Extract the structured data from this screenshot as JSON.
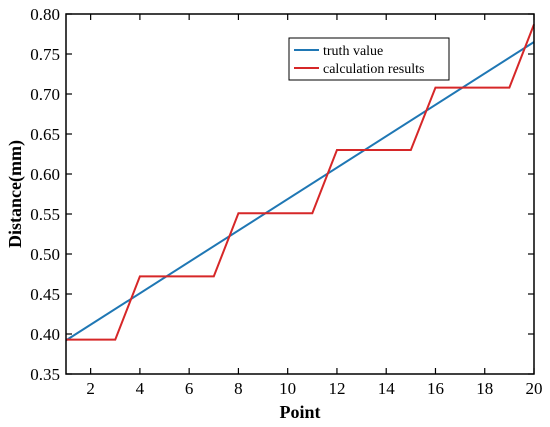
{
  "chart_data": {
    "type": "line",
    "title": "",
    "xlabel": "Point",
    "ylabel": "Distance(mm)",
    "xlim": [
      1,
      20
    ],
    "ylim": [
      0.35,
      0.8
    ],
    "xticks": [
      2,
      4,
      6,
      8,
      10,
      12,
      14,
      16,
      18,
      20
    ],
    "yticks": [
      0.35,
      0.4,
      0.45,
      0.5,
      0.55,
      0.6,
      0.65,
      0.7,
      0.75,
      0.8
    ],
    "xtick_labels": [
      "2",
      "4",
      "6",
      "8",
      "10",
      "12",
      "14",
      "16",
      "18",
      "20"
    ],
    "ytick_labels": [
      "0.35",
      "0.40",
      "0.45",
      "0.50",
      "0.55",
      "0.60",
      "0.65",
      "0.70",
      "0.75",
      "0.80"
    ],
    "grid": false,
    "legend_position": "top-right",
    "series": [
      {
        "name": "truth value",
        "color": "#1f77b4",
        "x": [
          1,
          20
        ],
        "y": [
          0.392,
          0.765
        ]
      },
      {
        "name": "calculation results",
        "color": "#d62728",
        "x": [
          1,
          3,
          4,
          7,
          8,
          11,
          12,
          15,
          16,
          19,
          20
        ],
        "y": [
          0.393,
          0.393,
          0.472,
          0.472,
          0.551,
          0.551,
          0.63,
          0.63,
          0.708,
          0.708,
          0.787
        ]
      }
    ]
  }
}
